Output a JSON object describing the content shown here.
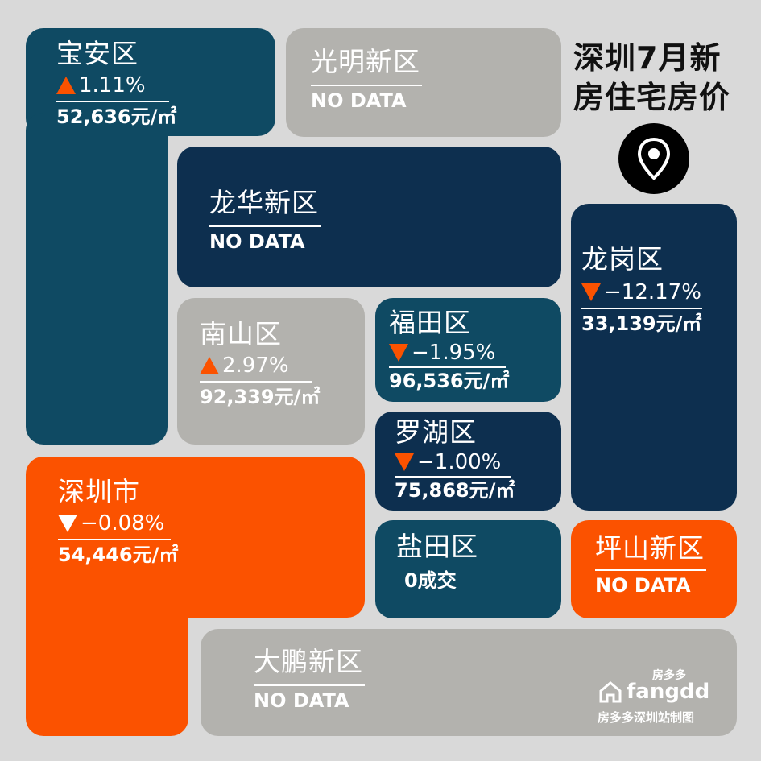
{
  "title": {
    "line1": "深圳7月新",
    "line2": "房住宅房价"
  },
  "districts": {
    "baoan": {
      "name": "宝安区",
      "change": "1.11%",
      "price": "52,636元/㎡"
    },
    "guangming": {
      "name": "光明新区",
      "status": "NO DATA"
    },
    "longhua": {
      "name": "龙华新区",
      "status": "NO DATA"
    },
    "longgang": {
      "name": "龙岗区",
      "change": "−12.17%",
      "price": "33,139元/㎡"
    },
    "nanshan": {
      "name": "南山区",
      "change": "2.97%",
      "price": "92,339元/㎡"
    },
    "futian": {
      "name": "福田区",
      "change": "−1.95%",
      "price": "96,536元/㎡"
    },
    "luohu": {
      "name": "罗湖区",
      "change": "−1.00%",
      "price": "75,868元/㎡"
    },
    "shenzhen": {
      "name": "深圳市",
      "change": "−0.08%",
      "price": "54,446元/㎡"
    },
    "yantian": {
      "name": "盐田区",
      "status": "0成交"
    },
    "pingshan": {
      "name": "坪山新区",
      "status": "NO DATA"
    },
    "dapeng": {
      "name": "大鹏新区",
      "status": "NO DATA"
    }
  },
  "brand": {
    "top": "房多多",
    "logo": "fangdd",
    "sub": "房多多深圳站制图"
  },
  "colors": {
    "teal": "#0f4a63",
    "navy": "#0d2f4f",
    "grey": "#b3b2ae",
    "orange": "#fb5200"
  },
  "icons": {
    "change_up": "triangle-up-icon",
    "change_down": "triangle-down-icon",
    "location": "location-pin-icon",
    "logo": "house-icon"
  }
}
